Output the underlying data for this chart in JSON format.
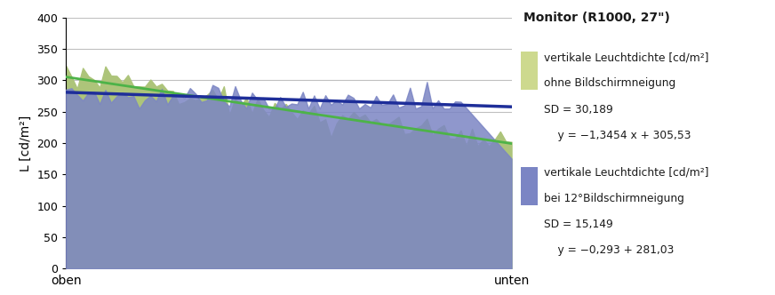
{
  "title": "Monitor (R1000, 27\")",
  "ylabel": "L [cd/m²]",
  "xlabel_left": "oben",
  "xlabel_right": "unten",
  "ylim": [
    0,
    400
  ],
  "yticks": [
    0,
    50,
    100,
    150,
    200,
    250,
    300,
    350,
    400
  ],
  "n_points": 80,
  "green_slope": -1.3454,
  "green_intercept": 305.53,
  "blue_slope": -0.293,
  "blue_intercept": 281.03,
  "green_fill_color": "#adc47a",
  "blue_fill_color": "#7b85c4",
  "green_line_color": "#4db348",
  "blue_line_color": "#1e2e99",
  "grid_color": "#c0c0c0",
  "background_color": "#ffffff",
  "legend_title": "Monitor (R1000, 27\")",
  "legend_swatch_green": "#cdd98e",
  "legend_swatch_blue": "#7b85c4",
  "legend_entry1": [
    "vertikale Leuchtdichte [cd/m²]",
    "ohne Bildschirmneigung",
    "SD = 30,189",
    "    y = −1,3454 x + 305,53"
  ],
  "legend_entry2": [
    "vertikale Leuchtdichte [cd/m²]",
    "bei 12°Bildschirmneigung",
    "SD = 15,149",
    "    y = −0,293 + 281,03"
  ]
}
